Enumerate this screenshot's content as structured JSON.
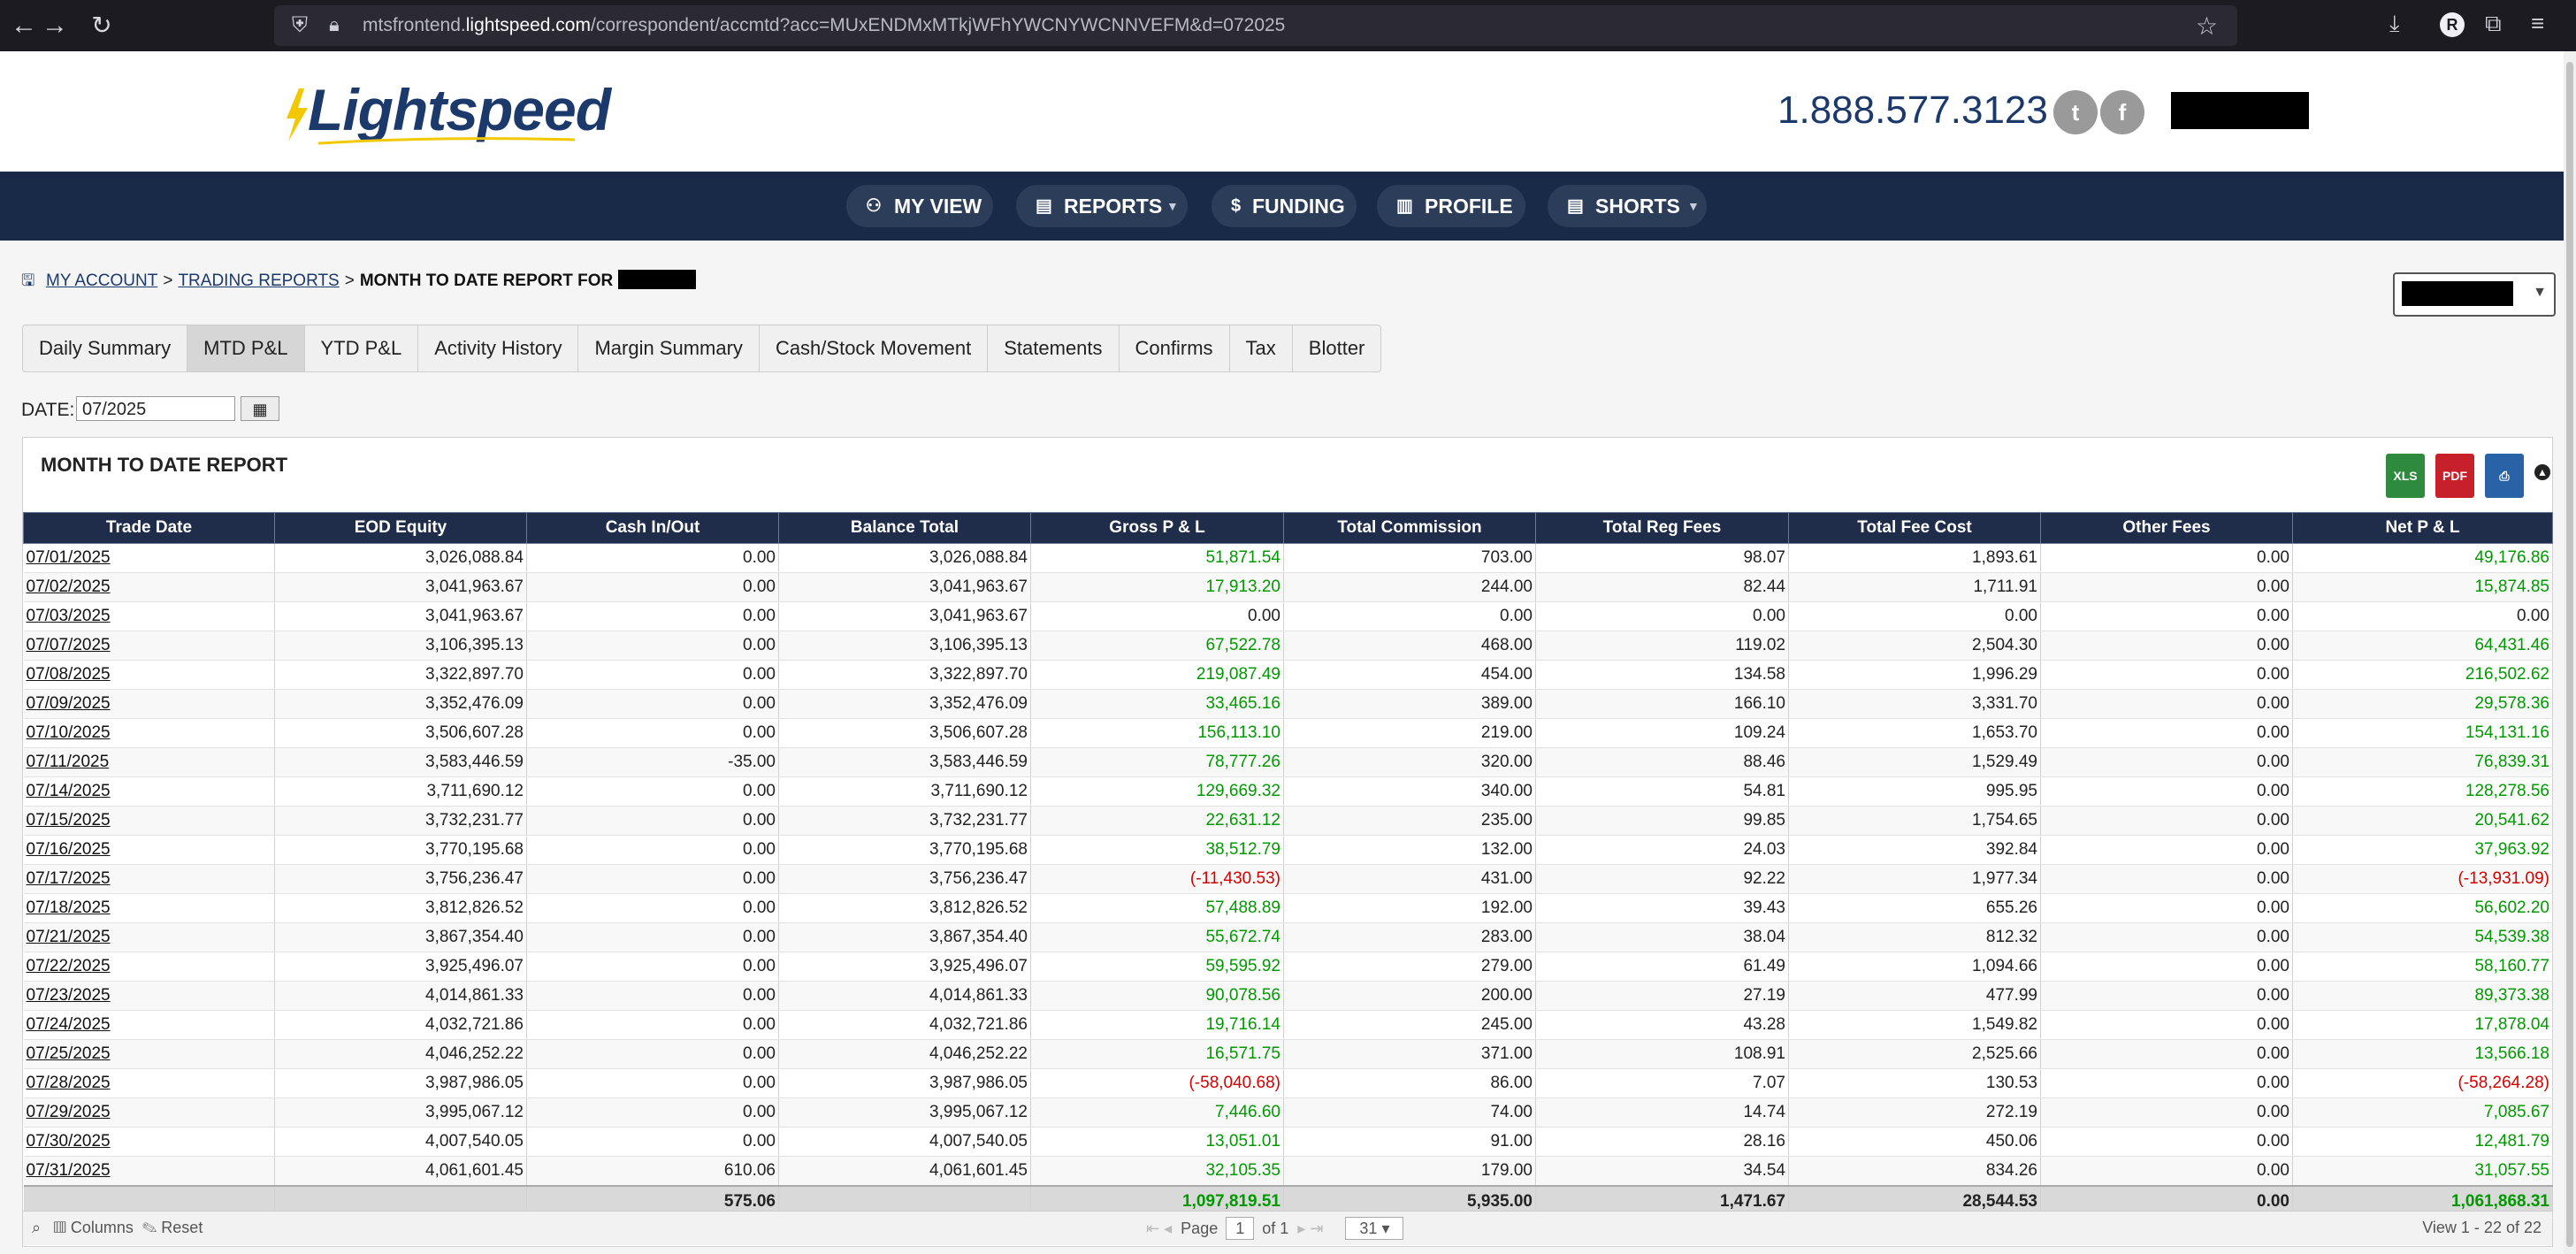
{
  "browser": {
    "url_prefix": "mtsfrontend.",
    "url_domain": "lightspeed.com",
    "url_path": "/correspondent/accmtd?acc=MUxENDMxMTkjWFhYWCNYWCNNVEFM&d=072025",
    "profile_initial": "R"
  },
  "header": {
    "logo_text": "Lightspeed",
    "phone": "1.888.577.3123"
  },
  "nav": {
    "my_view": "MY VIEW",
    "reports": "REPORTS",
    "funding": "FUNDING",
    "profile": "PROFILE",
    "shorts": "SHORTS"
  },
  "breadcrumb": {
    "my_account": "MY ACCOUNT",
    "trading_reports": "TRADING REPORTS",
    "current": "MONTH TO DATE REPORT FOR"
  },
  "tabs": [
    "Daily Summary",
    "MTD P&L",
    "YTD P&L",
    "Activity History",
    "Margin Summary",
    "Cash/Stock Movement",
    "Statements",
    "Confirms",
    "Tax",
    "Blotter"
  ],
  "active_tab": 1,
  "date_filter": {
    "label": "DATE:",
    "value": "07/2025"
  },
  "report": {
    "title": "MONTH TO DATE REPORT",
    "export_xls": "XLS",
    "export_pdf": "PDF"
  },
  "columns": [
    "Trade Date",
    "EOD Equity",
    "Cash In/Out",
    "Balance Total",
    "Gross P & L",
    "Total Commission",
    "Total Reg Fees",
    "Total Fee Cost",
    "Other Fees",
    "Net P & L"
  ],
  "rows": [
    [
      "07/01/2025",
      "3,026,088.84",
      "0.00",
      "3,026,088.84",
      "51,871.54",
      "703.00",
      "98.07",
      "1,893.61",
      "0.00",
      "49,176.86"
    ],
    [
      "07/02/2025",
      "3,041,963.67",
      "0.00",
      "3,041,963.67",
      "17,913.20",
      "244.00",
      "82.44",
      "1,711.91",
      "0.00",
      "15,874.85"
    ],
    [
      "07/03/2025",
      "3,041,963.67",
      "0.00",
      "3,041,963.67",
      "0.00",
      "0.00",
      "0.00",
      "0.00",
      "0.00",
      "0.00"
    ],
    [
      "07/07/2025",
      "3,106,395.13",
      "0.00",
      "3,106,395.13",
      "67,522.78",
      "468.00",
      "119.02",
      "2,504.30",
      "0.00",
      "64,431.46"
    ],
    [
      "07/08/2025",
      "3,322,897.70",
      "0.00",
      "3,322,897.70",
      "219,087.49",
      "454.00",
      "134.58",
      "1,996.29",
      "0.00",
      "216,502.62"
    ],
    [
      "07/09/2025",
      "3,352,476.09",
      "0.00",
      "3,352,476.09",
      "33,465.16",
      "389.00",
      "166.10",
      "3,331.70",
      "0.00",
      "29,578.36"
    ],
    [
      "07/10/2025",
      "3,506,607.28",
      "0.00",
      "3,506,607.28",
      "156,113.10",
      "219.00",
      "109.24",
      "1,653.70",
      "0.00",
      "154,131.16"
    ],
    [
      "07/11/2025",
      "3,583,446.59",
      "-35.00",
      "3,583,446.59",
      "78,777.26",
      "320.00",
      "88.46",
      "1,529.49",
      "0.00",
      "76,839.31"
    ],
    [
      "07/14/2025",
      "3,711,690.12",
      "0.00",
      "3,711,690.12",
      "129,669.32",
      "340.00",
      "54.81",
      "995.95",
      "0.00",
      "128,278.56"
    ],
    [
      "07/15/2025",
      "3,732,231.77",
      "0.00",
      "3,732,231.77",
      "22,631.12",
      "235.00",
      "99.85",
      "1,754.65",
      "0.00",
      "20,541.62"
    ],
    [
      "07/16/2025",
      "3,770,195.68",
      "0.00",
      "3,770,195.68",
      "38,512.79",
      "132.00",
      "24.03",
      "392.84",
      "0.00",
      "37,963.92"
    ],
    [
      "07/17/2025",
      "3,756,236.47",
      "0.00",
      "3,756,236.47",
      "(-11,430.53)",
      "431.00",
      "92.22",
      "1,977.34",
      "0.00",
      "(-13,931.09)"
    ],
    [
      "07/18/2025",
      "3,812,826.52",
      "0.00",
      "3,812,826.52",
      "57,488.89",
      "192.00",
      "39.43",
      "655.26",
      "0.00",
      "56,602.20"
    ],
    [
      "07/21/2025",
      "3,867,354.40",
      "0.00",
      "3,867,354.40",
      "55,672.74",
      "283.00",
      "38.04",
      "812.32",
      "0.00",
      "54,539.38"
    ],
    [
      "07/22/2025",
      "3,925,496.07",
      "0.00",
      "3,925,496.07",
      "59,595.92",
      "279.00",
      "61.49",
      "1,094.66",
      "0.00",
      "58,160.77"
    ],
    [
      "07/23/2025",
      "4,014,861.33",
      "0.00",
      "4,014,861.33",
      "90,078.56",
      "200.00",
      "27.19",
      "477.99",
      "0.00",
      "89,373.38"
    ],
    [
      "07/24/2025",
      "4,032,721.86",
      "0.00",
      "4,032,721.86",
      "19,716.14",
      "245.00",
      "43.28",
      "1,549.82",
      "0.00",
      "17,878.04"
    ],
    [
      "07/25/2025",
      "4,046,252.22",
      "0.00",
      "4,046,252.22",
      "16,571.75",
      "371.00",
      "108.91",
      "2,525.66",
      "0.00",
      "13,566.18"
    ],
    [
      "07/28/2025",
      "3,987,986.05",
      "0.00",
      "3,987,986.05",
      "(-58,040.68)",
      "86.00",
      "7.07",
      "130.53",
      "0.00",
      "(-58,264.28)"
    ],
    [
      "07/29/2025",
      "3,995,067.12",
      "0.00",
      "3,995,067.12",
      "7,446.60",
      "74.00",
      "14.74",
      "272.19",
      "0.00",
      "7,085.67"
    ],
    [
      "07/30/2025",
      "4,007,540.05",
      "0.00",
      "4,007,540.05",
      "13,051.01",
      "91.00",
      "28.16",
      "450.06",
      "0.00",
      "12,481.79"
    ],
    [
      "07/31/2025",
      "4,061,601.45",
      "610.06",
      "4,061,601.45",
      "32,105.35",
      "179.00",
      "34.54",
      "834.26",
      "0.00",
      "31,057.55"
    ]
  ],
  "totals": [
    "",
    "",
    "575.06",
    "",
    "1,097,819.51",
    "5,935.00",
    "1,471.67",
    "28,544.53",
    "0.00",
    "1,061,868.31"
  ],
  "pager": {
    "columns_label": "Columns",
    "reset_label": "Reset",
    "page_label": "Page",
    "page_value": "1",
    "of_label": "of 1",
    "rows_per_page": "31",
    "view_text": "View 1 - 22 of 22"
  },
  "colors": {
    "nav_bg": "#182a48",
    "positive": "#009900",
    "negative": "#d40000",
    "header_bg": "#1f2d4a"
  }
}
